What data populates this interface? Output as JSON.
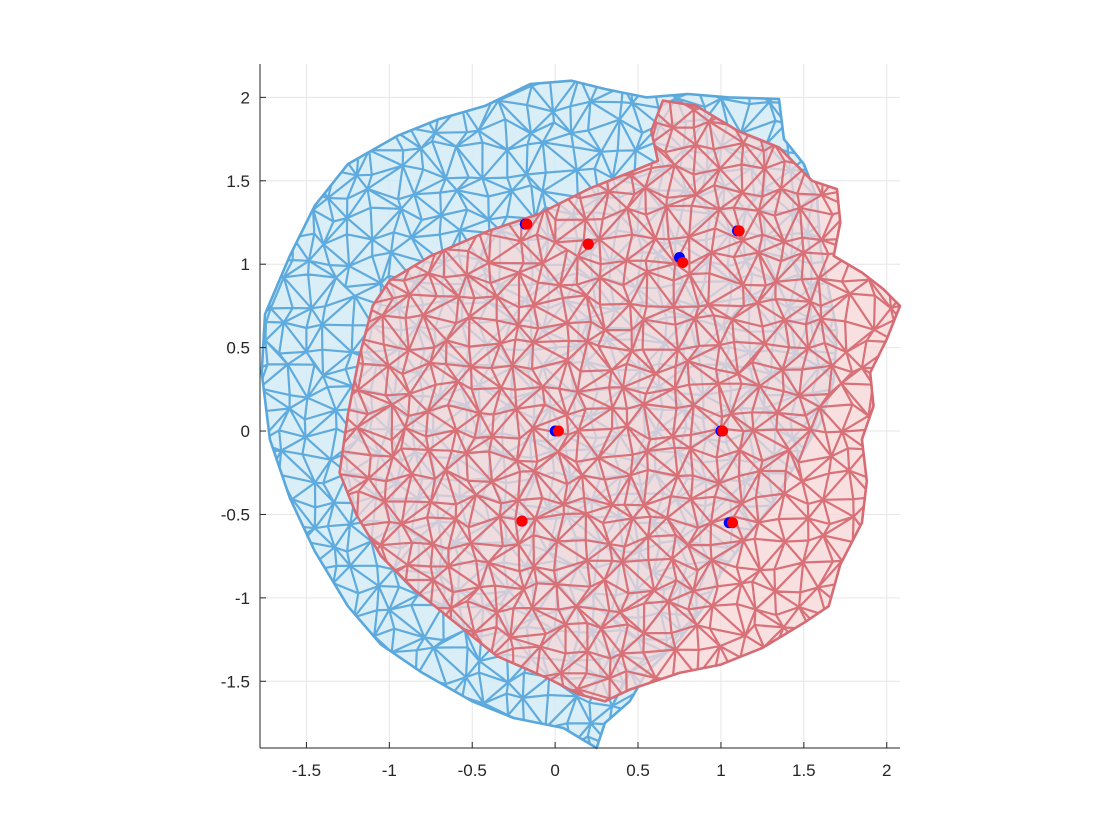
{
  "chart_data": {
    "type": "scatter",
    "title": "",
    "xlabel": "",
    "ylabel": "",
    "xlim": [
      -1.78,
      2.08
    ],
    "ylim": [
      -1.9,
      2.2
    ],
    "grid": true,
    "x_ticks": [
      -1.5,
      -1,
      -0.5,
      0,
      0.5,
      1,
      1.5,
      2
    ],
    "y_ticks": [
      -1.5,
      -1,
      -0.5,
      0,
      0.5,
      1,
      1.5,
      2
    ],
    "x_tick_labels": [
      "-1.5",
      "-1",
      "-0.5",
      "0",
      "0.5",
      "1",
      "1.5",
      "2"
    ],
    "y_tick_labels": [
      "-1.5",
      "-1",
      "-0.5",
      "0",
      "0.5",
      "1",
      "1.5",
      "2"
    ],
    "meshes": [
      {
        "color": "#5aa7dc",
        "fill": "#d2ebf6",
        "boundary": [
          [
            -0.42,
            1.95
          ],
          [
            -0.15,
            2.08
          ],
          [
            0.1,
            2.1
          ],
          [
            0.3,
            2.05
          ],
          [
            0.55,
            2.0
          ],
          [
            0.8,
            2.02
          ],
          [
            1.05,
            2.0
          ],
          [
            1.35,
            1.99
          ],
          [
            1.38,
            1.75
          ],
          [
            1.5,
            1.6
          ],
          [
            1.58,
            1.4
          ],
          [
            1.6,
            1.1
          ],
          [
            1.65,
            0.85
          ],
          [
            1.7,
            0.6
          ],
          [
            1.68,
            0.3
          ],
          [
            1.6,
            0.05
          ],
          [
            1.45,
            -0.2
          ],
          [
            1.3,
            -0.45
          ],
          [
            1.15,
            -0.65
          ],
          [
            1.0,
            -0.85
          ],
          [
            0.9,
            -1.05
          ],
          [
            0.75,
            -1.25
          ],
          [
            0.55,
            -1.45
          ],
          [
            0.45,
            -1.62
          ],
          [
            0.3,
            -1.75
          ],
          [
            0.25,
            -1.9
          ],
          [
            0.05,
            -1.78
          ],
          [
            -0.25,
            -1.72
          ],
          [
            -0.5,
            -1.62
          ],
          [
            -0.8,
            -1.45
          ],
          [
            -1.05,
            -1.28
          ],
          [
            -1.25,
            -1.05
          ],
          [
            -1.45,
            -0.72
          ],
          [
            -1.6,
            -0.4
          ],
          [
            -1.72,
            -0.05
          ],
          [
            -1.77,
            0.35
          ],
          [
            -1.75,
            0.7
          ],
          [
            -1.6,
            1.05
          ],
          [
            -1.45,
            1.35
          ],
          [
            -1.25,
            1.6
          ],
          [
            -0.95,
            1.77
          ],
          [
            -0.7,
            1.87
          ]
        ]
      },
      {
        "color": "#d76a72",
        "fill": "#f6d6d6",
        "boundary": [
          [
            0.65,
            1.98
          ],
          [
            0.85,
            1.95
          ],
          [
            1.1,
            1.8
          ],
          [
            1.35,
            1.7
          ],
          [
            1.55,
            1.5
          ],
          [
            1.7,
            1.45
          ],
          [
            1.72,
            1.25
          ],
          [
            1.68,
            1.05
          ],
          [
            1.85,
            0.95
          ],
          [
            1.98,
            0.85
          ],
          [
            2.08,
            0.75
          ],
          [
            2.0,
            0.55
          ],
          [
            1.9,
            0.35
          ],
          [
            1.92,
            0.15
          ],
          [
            1.85,
            -0.05
          ],
          [
            1.88,
            -0.3
          ],
          [
            1.85,
            -0.55
          ],
          [
            1.72,
            -0.8
          ],
          [
            1.65,
            -1.05
          ],
          [
            1.5,
            -1.15
          ],
          [
            1.25,
            -1.3
          ],
          [
            1.0,
            -1.4
          ],
          [
            0.75,
            -1.45
          ],
          [
            0.45,
            -1.55
          ],
          [
            0.3,
            -1.62
          ],
          [
            0.15,
            -1.58
          ],
          [
            -0.05,
            -1.48
          ],
          [
            -0.35,
            -1.35
          ],
          [
            -0.6,
            -1.15
          ],
          [
            -0.85,
            -0.95
          ],
          [
            -1.05,
            -0.75
          ],
          [
            -1.2,
            -0.5
          ],
          [
            -1.3,
            -0.25
          ],
          [
            -1.25,
            0.1
          ],
          [
            -1.18,
            0.45
          ],
          [
            -1.1,
            0.75
          ],
          [
            -1.0,
            0.9
          ],
          [
            -0.75,
            1.05
          ],
          [
            -0.4,
            1.2
          ],
          [
            -0.1,
            1.3
          ],
          [
            0.2,
            1.45
          ],
          [
            0.45,
            1.55
          ],
          [
            0.62,
            1.62
          ],
          [
            0.58,
            1.8
          ]
        ]
      }
    ],
    "point_series": [
      {
        "color": "#0000ff",
        "points": [
          [
            -0.18,
            1.24
          ],
          [
            0.2,
            1.12
          ],
          [
            0.75,
            1.04
          ],
          [
            1.1,
            1.2
          ],
          [
            0.0,
            0.0
          ],
          [
            1.0,
            0.0
          ],
          [
            -0.2,
            -0.54
          ],
          [
            1.05,
            -0.55
          ]
        ]
      },
      {
        "color": "#ff0000",
        "points": [
          [
            -0.17,
            1.24
          ],
          [
            0.2,
            1.12
          ],
          [
            0.77,
            1.01
          ],
          [
            1.11,
            1.2
          ],
          [
            0.02,
            0.0
          ],
          [
            1.01,
            0.0
          ],
          [
            -0.2,
            -0.54
          ],
          [
            1.07,
            -0.55
          ]
        ]
      }
    ]
  }
}
